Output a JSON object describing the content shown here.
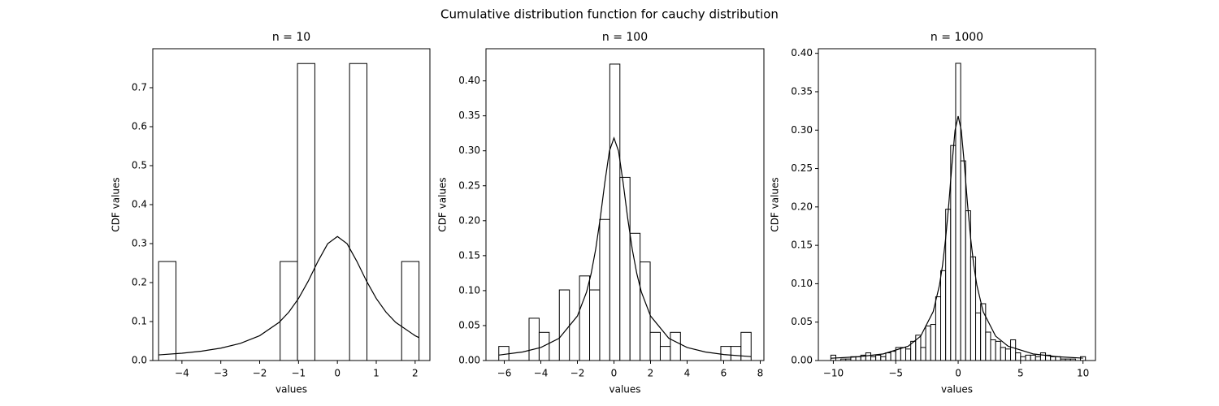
{
  "title": "Cumulative distribution function for cauchy distribution",
  "chart_data": [
    {
      "type": "histogram",
      "title": "n = 10",
      "x_label": "values",
      "y_label": "CDF values",
      "color": "#ffffff",
      "edge_color": "#000000",
      "bins": [
        -4.6,
        -4.153,
        -3.707,
        -3.26,
        -2.813,
        -2.367,
        -1.92,
        -1.473,
        -1.027,
        -0.58,
        -0.133,
        0.313,
        0.76,
        1.207,
        1.653,
        2.1
      ],
      "values": [
        0.254,
        0,
        0,
        0,
        0,
        0,
        0,
        0.254,
        0.762,
        0,
        0,
        0.762,
        0,
        0,
        0.254
      ],
      "curve": {
        "color": "#000000",
        "x": [
          -4.6,
          -4,
          -3.5,
          -3,
          -2.5,
          -2,
          -1.5,
          -1.25,
          -1,
          -0.75,
          -0.5,
          -0.25,
          0,
          0.25,
          0.5,
          0.75,
          1,
          1.25,
          1.5,
          2,
          2.1
        ],
        "y": [
          0.0144,
          0.0187,
          0.024,
          0.0318,
          0.0439,
          0.0637,
          0.0979,
          0.1242,
          0.1592,
          0.2037,
          0.2546,
          0.2996,
          0.3183,
          0.2996,
          0.2546,
          0.2037,
          0.1592,
          0.1242,
          0.0979,
          0.0637,
          0.0588
        ]
      },
      "xlim": [
        -4.75,
        2.38
      ],
      "ylim": [
        0,
        0.8
      ],
      "xticks": [
        {
          "value": -4,
          "label": "−4"
        },
        {
          "value": -3,
          "label": "−3"
        },
        {
          "value": -2,
          "label": "−2"
        },
        {
          "value": -1,
          "label": "−1"
        },
        0,
        1,
        2
      ],
      "yticks": [
        {
          "value": 0,
          "label": "0.0"
        },
        0.1,
        0.2,
        0.3,
        0.4,
        0.5,
        0.6,
        0.7
      ]
    },
    {
      "type": "histogram",
      "title": "n = 100",
      "x_label": "values",
      "y_label": "CDF values",
      "color": "#ffffff",
      "edge_color": "#000000",
      "bins": [
        -6.3,
        -5.748,
        -5.196,
        -4.644,
        -4.092,
        -3.54,
        -2.988,
        -2.436,
        -1.884,
        -1.332,
        -0.78,
        -0.228,
        0.324,
        0.876,
        1.428,
        1.98,
        2.532,
        3.084,
        3.636,
        4.188,
        4.74,
        5.292,
        5.844,
        6.396,
        6.948,
        7.5
      ],
      "values": [
        0.0202,
        0,
        0,
        0.0605,
        0.0403,
        0,
        0.101,
        0,
        0.121,
        0.101,
        0.2018,
        0.424,
        0.262,
        0.182,
        0.141,
        0.0403,
        0.0202,
        0.0403,
        0,
        0,
        0,
        0,
        0.0202,
        0.0202,
        0.0403
      ],
      "curve": {
        "color": "#000000",
        "x": [
          -6.3,
          -5,
          -4,
          -3,
          -2,
          -1.5,
          -1.25,
          -1,
          -0.75,
          -0.5,
          -0.25,
          0,
          0.25,
          0.5,
          0.75,
          1,
          1.25,
          1.5,
          2,
          3,
          4,
          5,
          6,
          7.5
        ],
        "y": [
          0.0078,
          0.0122,
          0.0187,
          0.0318,
          0.0637,
          0.0979,
          0.1242,
          0.1592,
          0.2037,
          0.2546,
          0.2996,
          0.3183,
          0.2996,
          0.2546,
          0.2037,
          0.1592,
          0.1242,
          0.0979,
          0.0637,
          0.0318,
          0.0187,
          0.0122,
          0.0086,
          0.0056
        ]
      },
      "xlim": [
        -7.0,
        8.2
      ],
      "ylim": [
        0,
        0.446
      ],
      "xticks": [
        {
          "value": -6,
          "label": "−6"
        },
        {
          "value": -4,
          "label": "−4"
        },
        {
          "value": -2,
          "label": "−2"
        },
        0,
        2,
        4,
        6,
        8
      ],
      "yticks": [
        {
          "value": 0,
          "label": "0.00"
        },
        0.05,
        {
          "value": 0.1,
          "label": "0.10"
        },
        0.15,
        {
          "value": 0.2,
          "label": "0.20"
        },
        0.25,
        {
          "value": 0.3,
          "label": "0.30"
        },
        0.35,
        {
          "value": 0.4,
          "label": "0.40"
        }
      ]
    },
    {
      "type": "histogram",
      "title": "n = 1000",
      "x_label": "values",
      "y_label": "CDF values",
      "color": "#ffffff",
      "edge_color": "#000000",
      "bins": [
        -10.2,
        -9.8,
        -9.4,
        -9.0,
        -8.6,
        -8.2,
        -7.8,
        -7.4,
        -7.0,
        -6.6,
        -6.2,
        -5.8,
        -5.4,
        -5.0,
        -4.6,
        -4.2,
        -3.8,
        -3.4,
        -3.0,
        -2.6,
        -2.2,
        -1.8,
        -1.4,
        -1.0,
        -0.6,
        -0.2,
        0.2,
        0.6,
        1.0,
        1.4,
        1.8,
        2.2,
        2.6,
        3.0,
        3.4,
        3.8,
        4.2,
        4.6,
        5.0,
        5.4,
        5.8,
        6.2,
        6.6,
        7.0,
        7.4,
        7.8,
        8.2,
        8.6,
        9.0,
        9.4,
        9.8,
        10.2
      ],
      "values": [
        0.007,
        0,
        0.002,
        0.002,
        0.005,
        0.005,
        0.007,
        0.01,
        0.005,
        0.007,
        0.005,
        0.01,
        0.012,
        0.017,
        0.017,
        0.015,
        0.025,
        0.033,
        0.017,
        0.045,
        0.047,
        0.083,
        0.117,
        0.197,
        0.28,
        0.387,
        0.26,
        0.195,
        0.135,
        0.062,
        0.074,
        0.037,
        0.027,
        0.025,
        0.017,
        0.015,
        0.027,
        0.01,
        0.005,
        0.007,
        0.007,
        0.005,
        0.01,
        0.007,
        0.005,
        0.005,
        0.002,
        0.002,
        0.002,
        0,
        0.005
      ],
      "curve": {
        "color": "#000000",
        "x": [
          -10.2,
          -8,
          -6,
          -4,
          -3,
          -2,
          -1.5,
          -1.25,
          -1,
          -0.75,
          -0.5,
          -0.25,
          0,
          0.25,
          0.5,
          0.75,
          1,
          1.25,
          1.5,
          2,
          3,
          4,
          6,
          8,
          10
        ],
        "y": [
          0.003,
          0.0049,
          0.0086,
          0.0187,
          0.0318,
          0.0637,
          0.0979,
          0.1242,
          0.1592,
          0.2037,
          0.2546,
          0.2996,
          0.3183,
          0.2996,
          0.2546,
          0.2037,
          0.1592,
          0.1242,
          0.0979,
          0.0637,
          0.0318,
          0.0187,
          0.0086,
          0.0049,
          0.0031
        ]
      },
      "xlim": [
        -11.2,
        11.0
      ],
      "ylim": [
        0,
        0.406
      ],
      "xticks": [
        {
          "value": -10,
          "label": "−10"
        },
        {
          "value": -5,
          "label": "−5"
        },
        0,
        5,
        10
      ],
      "yticks": [
        {
          "value": 0,
          "label": "0.00"
        },
        0.05,
        {
          "value": 0.1,
          "label": "0.10"
        },
        0.15,
        {
          "value": 0.2,
          "label": "0.20"
        },
        0.25,
        {
          "value": 0.3,
          "label": "0.30"
        },
        0.35,
        {
          "value": 0.4,
          "label": "0.40"
        }
      ]
    }
  ]
}
